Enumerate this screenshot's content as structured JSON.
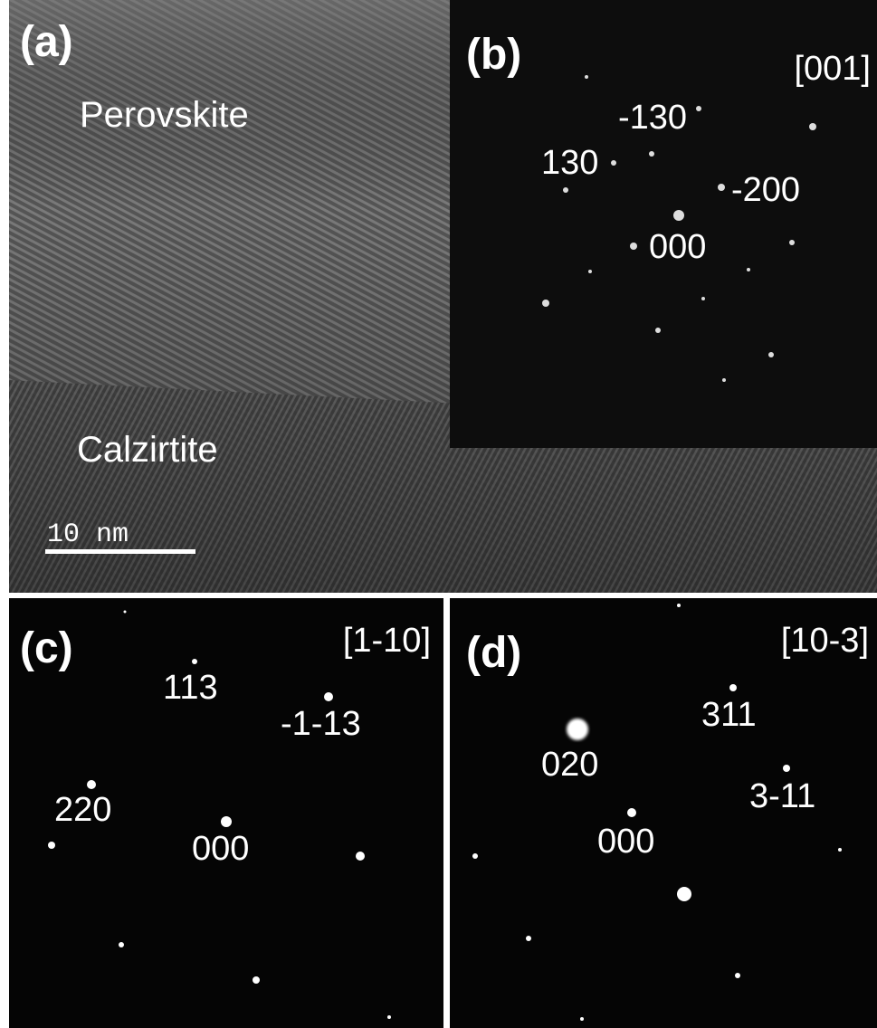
{
  "panels": {
    "a": {
      "label": "(a)",
      "regions": [
        "Perovskite",
        "Calzirtite"
      ],
      "scale_bar": "10 nm"
    },
    "b": {
      "label": "(b)",
      "zone_axis": "[001]",
      "spots": [
        "-130",
        "130",
        "-200",
        "000"
      ]
    },
    "c": {
      "label": "(c)",
      "zone_axis": "[1-10]",
      "spots": [
        "113",
        "-1-13",
        "220",
        "000"
      ]
    },
    "d": {
      "label": "(d)",
      "zone_axis": "[10-3]",
      "spots": [
        "311",
        "020",
        "3-11",
        "000"
      ]
    }
  }
}
